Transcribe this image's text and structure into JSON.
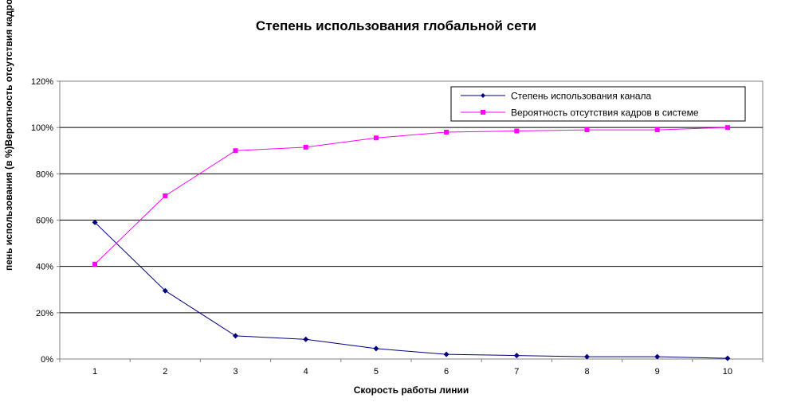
{
  "chart_data": {
    "type": "line",
    "title": "Степень использования глобальной сети",
    "xlabel": "Скорость работы линии",
    "ylabel": "пень использования (в %)Вероятность отсутствия кадров в системе",
    "categories": [
      "1",
      "2",
      "3",
      "4",
      "5",
      "6",
      "7",
      "8",
      "9",
      "10"
    ],
    "yticks": [
      "0%",
      "20%",
      "40%",
      "60%",
      "80%",
      "100%",
      "120%"
    ],
    "ylim": [
      0,
      1.2
    ],
    "grid": true,
    "legend_position": "top-right",
    "series": [
      {
        "name": "Степень использования канала",
        "color": "#000080",
        "marker": "diamond",
        "values": [
          0.59,
          0.295,
          0.1,
          0.085,
          0.045,
          0.02,
          0.015,
          0.01,
          0.01,
          0.003
        ]
      },
      {
        "name": "Вероятность отсутствия кадров в системе",
        "color": "#ff00ff",
        "marker": "square",
        "values": [
          0.41,
          0.705,
          0.9,
          0.915,
          0.955,
          0.98,
          0.985,
          0.99,
          0.99,
          1.0
        ]
      }
    ]
  }
}
